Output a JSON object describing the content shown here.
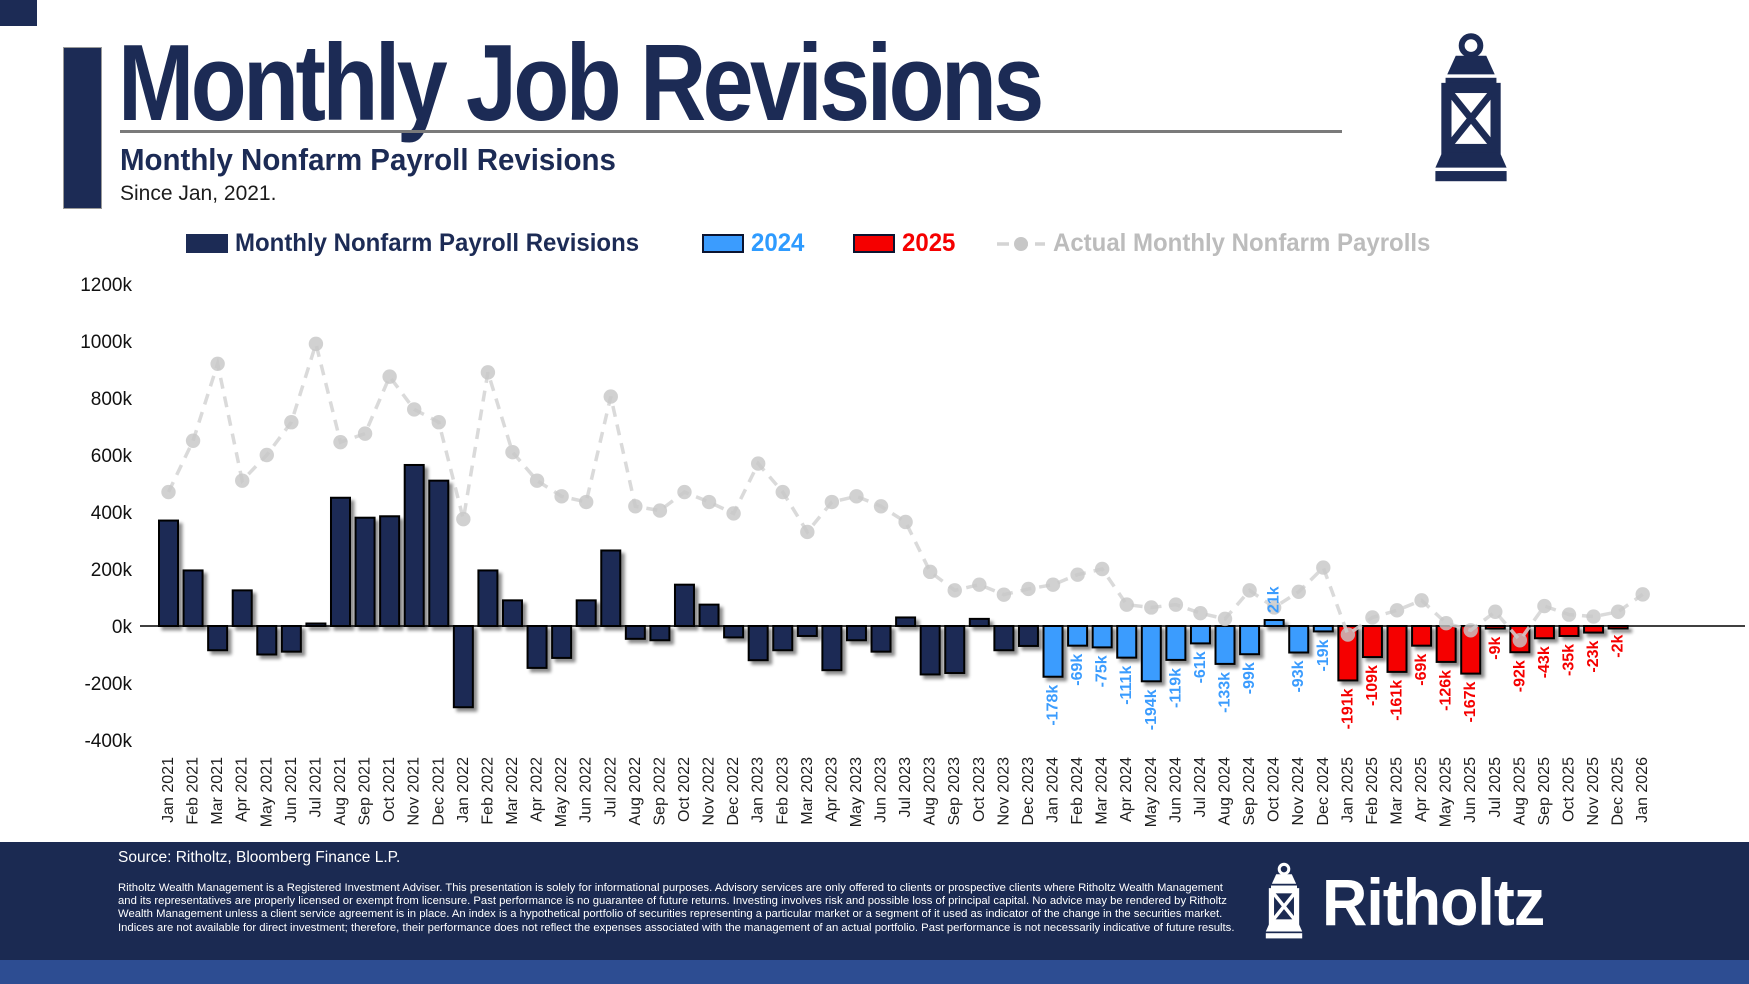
{
  "header": {
    "title": "Monthly Job Revisions",
    "subtitle": "Monthly Nonfarm Payroll Revisions",
    "since": "Since Jan, 2021."
  },
  "legend": {
    "revisions_label": "Monthly Nonfarm Payroll Revisions",
    "label_2024": "2024",
    "label_2025": "2025",
    "actual_label": "Actual Monthly Nonfarm Payrolls"
  },
  "colors": {
    "navy": "#1C2B55",
    "blue": "#3B9CFE",
    "red": "#F50000",
    "line_gray": "#D4D4D4",
    "dot_gray": "#C7C7C7",
    "legend_gray_text": "#BCBCBC"
  },
  "chart_data": {
    "type": "bar",
    "title": "Monthly Nonfarm Payroll Revisions",
    "subtitle": "Since Jan, 2021.",
    "unit": "thousands of jobs (k)",
    "ylim": [
      -400,
      1200
    ],
    "grid": false,
    "legend_position": "top",
    "yticks": [
      "1200k",
      "1000k",
      "800k",
      "600k",
      "400k",
      "200k",
      "0k",
      "-200k",
      "-400k"
    ],
    "ytick_values": [
      1200,
      1000,
      800,
      600,
      400,
      200,
      0,
      -200,
      -400
    ],
    "years": [
      "2021",
      "2022",
      "2023",
      "2024",
      "2025",
      "2026"
    ],
    "year_colors": {
      "2021": "#1C2B55",
      "2022": "#1C2B55",
      "2023": "#1C2B55",
      "2024": "#3B9CFE",
      "2025": "#F50000",
      "2026": "#1C2B55"
    },
    "line_color": "#D4D4D4",
    "dot_color": "#C7C7C7",
    "categories": [
      "Jan 2021",
      "Feb 2021",
      "Mar 2021",
      "Apr 2021",
      "May 2021",
      "Jun 2021",
      "Jul 2021",
      "Aug 2021",
      "Sep 2021",
      "Oct 2021",
      "Nov 2021",
      "Dec 2021",
      "Jan 2022",
      "Feb 2022",
      "Mar 2022",
      "Apr 2022",
      "May 2022",
      "Jun 2022",
      "Jul 2022",
      "Aug 2022",
      "Sep 2022",
      "Oct 2022",
      "Nov 2022",
      "Dec 2022",
      "Jan 2023",
      "Feb 2023",
      "Mar 2023",
      "Apr 2023",
      "May 2023",
      "Jun 2023",
      "Jul 2023",
      "Aug 2023",
      "Sep 2023",
      "Oct 2023",
      "Nov 2023",
      "Dec 2023",
      "Jan 2024",
      "Feb 2024",
      "Mar 2024",
      "Apr 2024",
      "May 2024",
      "Jun 2024",
      "Jul 2024",
      "Aug 2024",
      "Sep 2024",
      "Oct 2024",
      "Nov 2024",
      "Dec 2024",
      "Jan 2025",
      "Feb 2025",
      "Mar 2025",
      "Apr 2025",
      "May 2025",
      "Jun 2025",
      "Jul 2025",
      "Aug 2025",
      "Sep 2025",
      "Oct 2025",
      "Nov 2025",
      "Dec 2025",
      "Jan 2026"
    ],
    "series": [
      {
        "name": "Monthly Nonfarm Payroll Revisions",
        "type": "bar",
        "values": [
          370,
          195,
          -85,
          125,
          -100,
          -90,
          5,
          450,
          380,
          385,
          565,
          510,
          -285,
          195,
          90,
          -147,
          -112,
          90,
          265,
          -45,
          -50,
          145,
          75,
          -40,
          -120,
          -85,
          -35,
          -155,
          -50,
          -90,
          30,
          -170,
          -165,
          25,
          -85,
          -70,
          -178,
          -69,
          -75,
          -111,
          -194,
          -119,
          -61,
          -133,
          -99,
          21,
          -93,
          -19,
          -191,
          -109,
          -161,
          -69,
          -126,
          -167,
          -9,
          -92,
          -43,
          -35,
          -23,
          -2,
          null
        ]
      },
      {
        "name": "Actual Monthly Nonfarm Payrolls",
        "type": "line",
        "values": [
          470,
          650,
          920,
          510,
          600,
          715,
          990,
          645,
          675,
          875,
          760,
          715,
          375,
          890,
          610,
          510,
          455,
          435,
          805,
          420,
          405,
          470,
          435,
          395,
          570,
          470,
          330,
          435,
          455,
          420,
          365,
          190,
          125,
          145,
          110,
          130,
          145,
          180,
          200,
          75,
          65,
          75,
          45,
          25,
          125,
          65,
          120,
          205,
          -30,
          30,
          55,
          90,
          10,
          -15,
          50,
          -50,
          70,
          40,
          33,
          50,
          111
        ]
      }
    ],
    "bar_labels": [
      null,
      null,
      null,
      null,
      null,
      null,
      null,
      null,
      null,
      null,
      null,
      null,
      null,
      null,
      null,
      null,
      null,
      null,
      null,
      null,
      null,
      null,
      null,
      null,
      null,
      null,
      null,
      null,
      null,
      null,
      null,
      null,
      null,
      null,
      null,
      null,
      "-178k",
      "-69k",
      "-75k",
      "-111k",
      "-194k",
      "-119k",
      "-61k",
      "-133k",
      "-99k",
      "21k",
      "-93k",
      "-19k",
      "-191k",
      "-109k",
      "-161k",
      "-69k",
      "-126k",
      "-167k",
      "-9k",
      "-92k",
      "-43k",
      "-35k",
      "-23k",
      "-2k",
      null
    ]
  },
  "footer": {
    "source": "Source: Ritholtz, Bloomberg Finance L.P.",
    "disclaimer": "Ritholtz Wealth Management is a Registered Investment Adviser. This presentation is solely for informational purposes. Advisory services are only offered to clients or prospective clients where Ritholtz Wealth Management and its representatives are properly licensed or exempt from licensure. Past performance is no guarantee of future returns. Investing involves risk and possible loss of principal capital. No advice may be rendered by Ritholtz Wealth Management unless a client service agreement is in place. An index is a hypothetical portfolio of securities representing a particular market or a segment of it used as indicator of the change in the securities market. Indices are not available for direct investment; therefore, their performance does not reflect the expenses associated with the management of an actual portfolio. Past performance is not necessarily indicative of future results.",
    "brand": "Ritholtz"
  }
}
